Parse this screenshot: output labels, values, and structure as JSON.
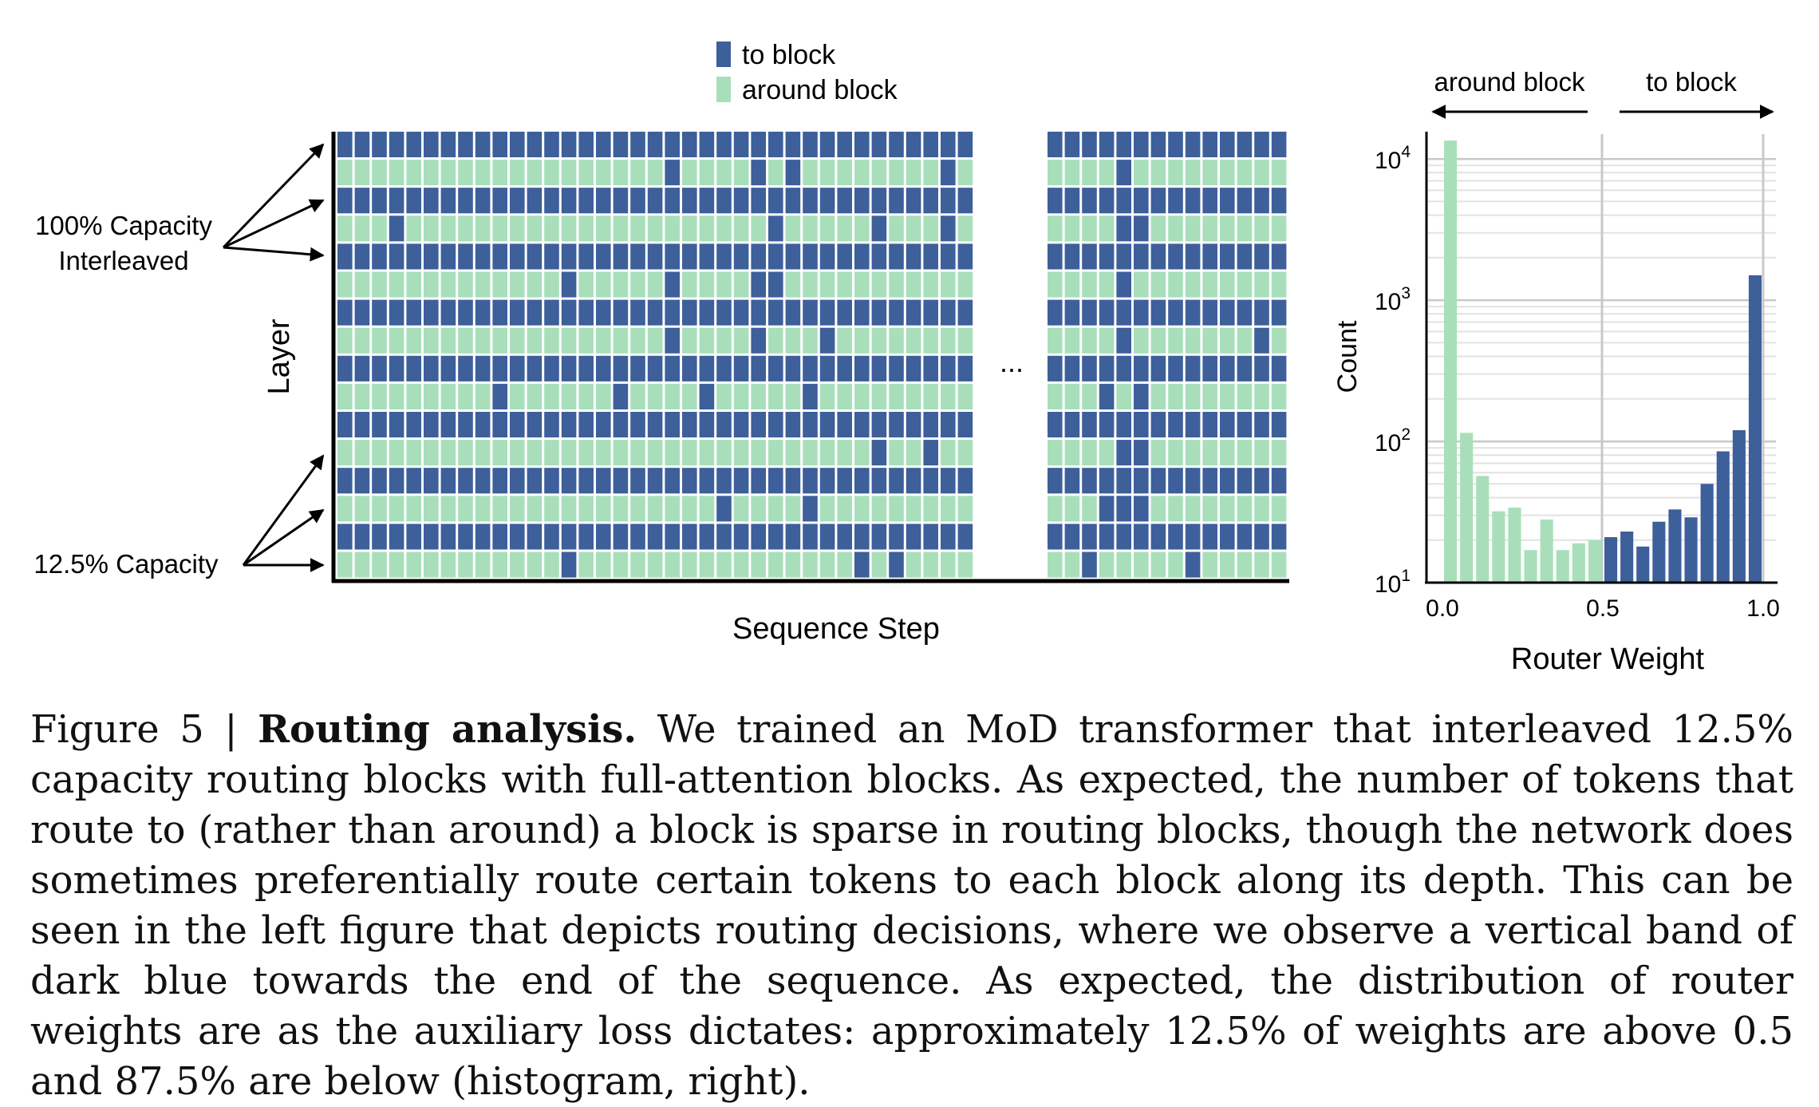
{
  "legend": {
    "to_block": "to block",
    "around_block": "around block"
  },
  "colors": {
    "to_block": "#3d5f9a",
    "around_block": "#a8dfba"
  },
  "heatmap": {
    "ylabel": "Layer",
    "xlabel": "Sequence Step",
    "ellipsis": "...",
    "annotation_full": [
      "100% Capacity",
      "Interleaved"
    ],
    "annotation_routed": "12.5% Capacity",
    "routing_rows": [
      {
        "left": [
          19,
          24,
          26,
          35
        ],
        "right": [
          4
        ]
      },
      {
        "left": [
          3,
          25,
          31,
          35
        ],
        "right": [
          4,
          5
        ]
      },
      {
        "left": [
          13,
          19,
          24,
          25
        ],
        "right": [
          4
        ]
      },
      {
        "left": [
          19,
          24,
          28
        ],
        "right": [
          4,
          12
        ]
      },
      {
        "left": [
          9,
          16,
          21,
          27
        ],
        "right": [
          3,
          5
        ]
      },
      {
        "left": [
          31,
          34
        ],
        "right": [
          4,
          5
        ]
      },
      {
        "left": [
          22,
          27
        ],
        "right": [
          3,
          4,
          5
        ]
      },
      {
        "left": [
          13,
          30,
          32
        ],
        "right": [
          2,
          8
        ]
      }
    ]
  },
  "chart_data": {
    "type": "bar",
    "xlabel": "Router Weight",
    "ylabel": "Count",
    "yscale": "log",
    "ylim": [
      10,
      15000
    ],
    "xlim": [
      0,
      1
    ],
    "xticks": [
      "0.0",
      "0.5",
      "1.0"
    ],
    "yticks": [
      {
        "base": "10",
        "exp": "1"
      },
      {
        "base": "10",
        "exp": "2"
      },
      {
        "base": "10",
        "exp": "3"
      },
      {
        "base": "10",
        "exp": "4"
      }
    ],
    "arrow_left": "around block",
    "arrow_right": "to block",
    "bin_width": 0.05,
    "bins_left": [
      0.0,
      0.05,
      0.1,
      0.15,
      0.2,
      0.25,
      0.3,
      0.35,
      0.4,
      0.45,
      0.5,
      0.55,
      0.6,
      0.65,
      0.7,
      0.75,
      0.8,
      0.85,
      0.9,
      0.95
    ],
    "series": [
      {
        "name": "around block",
        "values": [
          13500,
          115,
          57,
          32,
          34,
          17,
          28,
          17,
          19,
          20,
          0,
          0,
          0,
          0,
          0,
          0,
          0,
          0,
          0,
          0
        ]
      },
      {
        "name": "to block",
        "values": [
          0,
          0,
          0,
          0,
          0,
          0,
          0,
          0,
          0,
          0,
          21,
          23,
          18,
          27,
          33,
          29,
          50,
          85,
          120,
          1500
        ]
      }
    ]
  },
  "caption": {
    "label": "Figure 5 | ",
    "title": "Routing analysis.",
    "body": " We trained an MoD transformer that interleaved 12.5% capacity routing blocks with full-attention blocks. As expected, the number of tokens that route to (rather than around) a block is sparse in routing blocks, though the network does sometimes preferentially route certain tokens to each block along its depth. This can be seen in the left figure that depicts routing decisions, where we observe a vertical band of dark blue towards the end of the sequence. As expected, the distribution of router weights are as the auxiliary loss dictates: approximately 12.5% of weights are above 0.5 and 87.5% are below (histogram, right)."
  }
}
